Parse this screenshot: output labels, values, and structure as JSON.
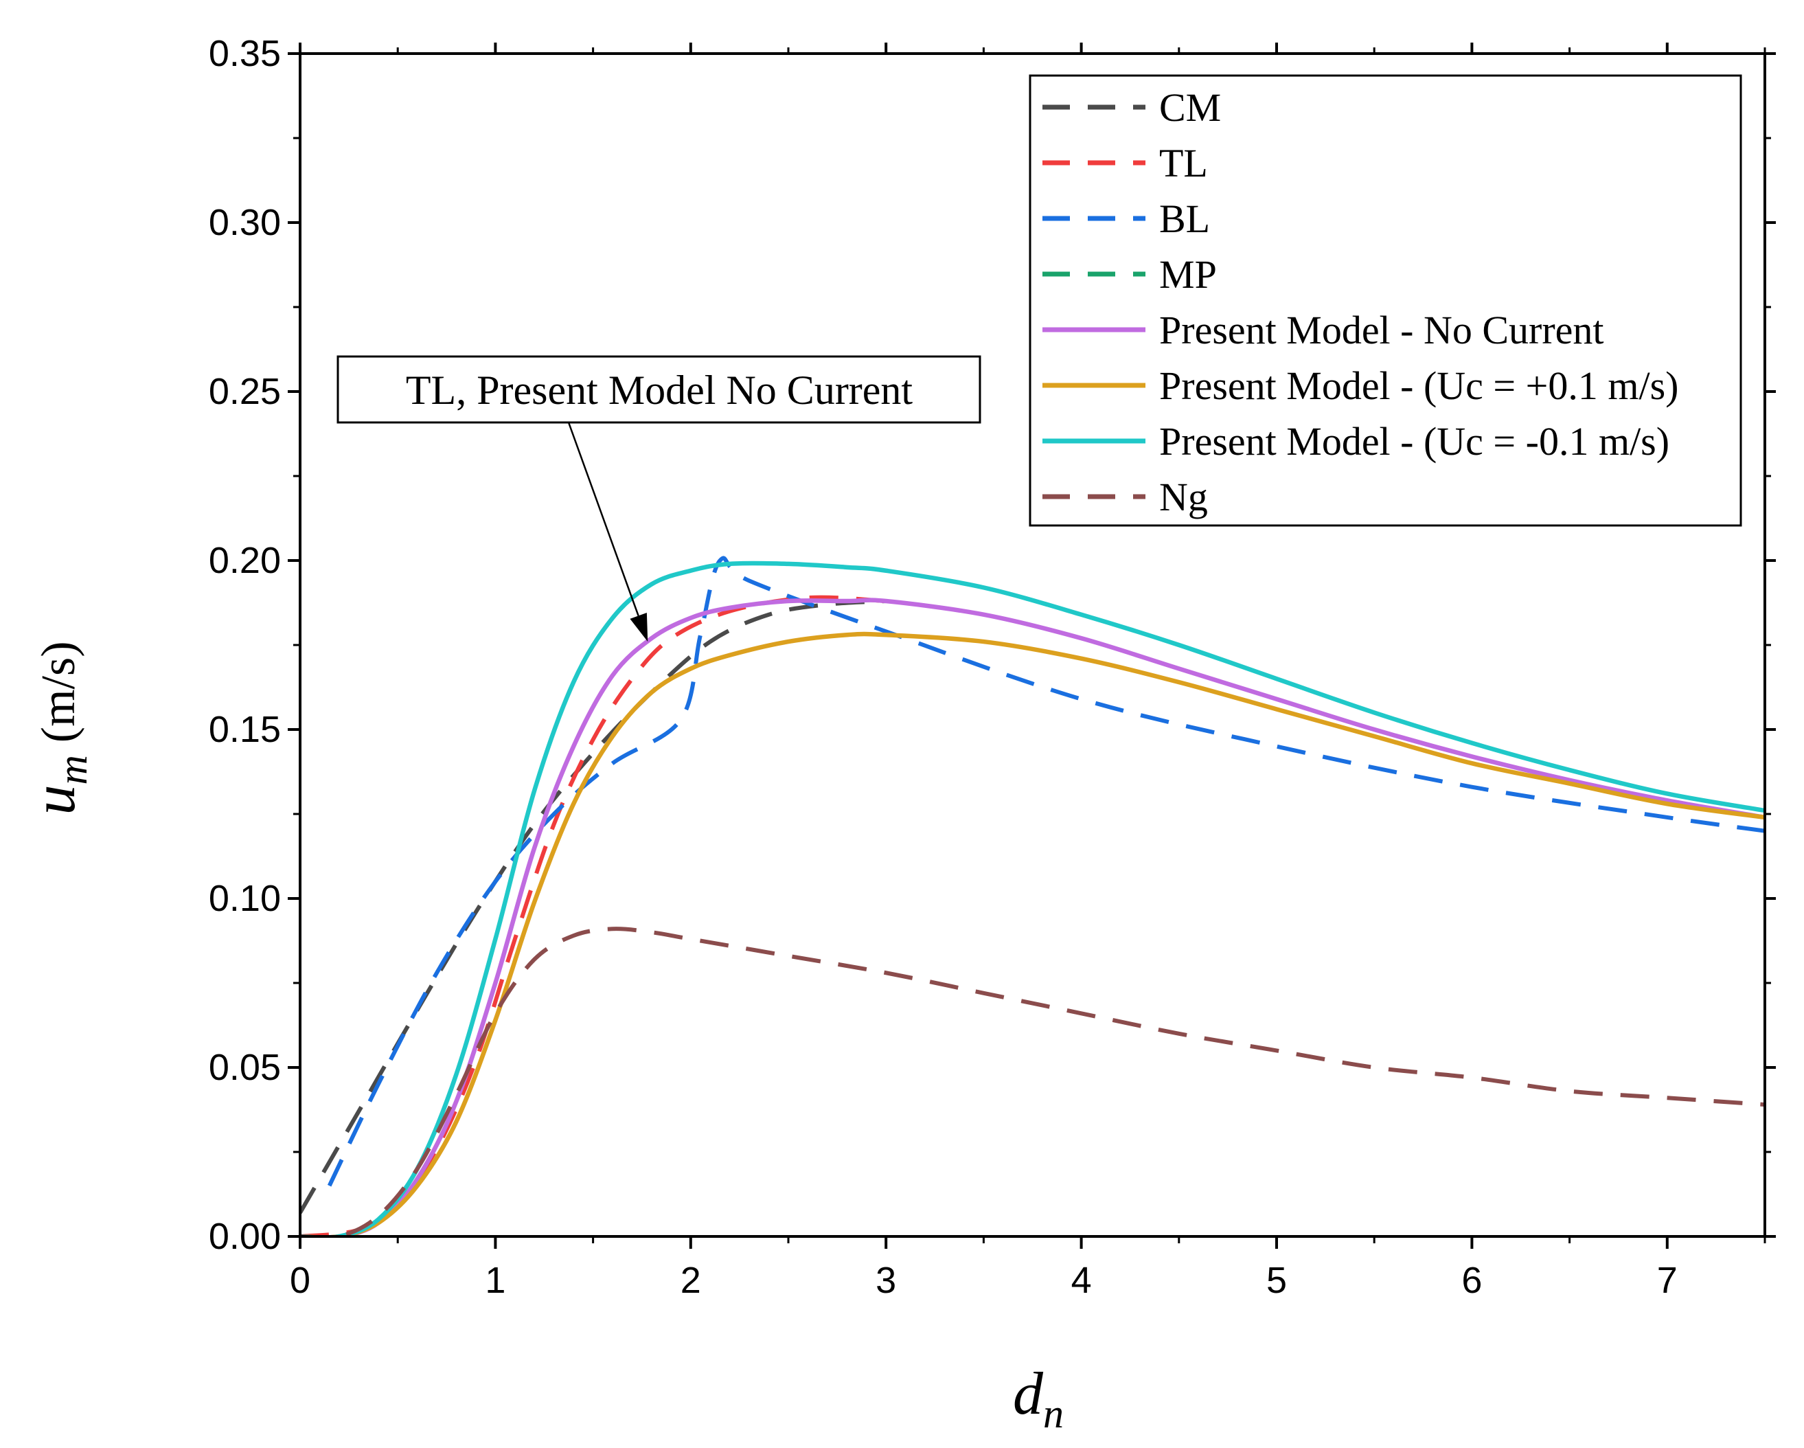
{
  "chart_data": {
    "type": "line",
    "title": "",
    "xlabel": "d",
    "xlabel_sub": "n",
    "ylabel": "u",
    "ylabel_sub": "m",
    "ylabel_unit": "(m/s)",
    "xlim": [
      0,
      7.5
    ],
    "ylim": [
      0,
      0.35
    ],
    "x_ticks": [
      "0",
      "1",
      "2",
      "3",
      "4",
      "5",
      "6",
      "7"
    ],
    "y_ticks": [
      "0.00",
      "0.05",
      "0.10",
      "0.15",
      "0.20",
      "0.25",
      "0.30",
      "0.35"
    ],
    "grid": false,
    "legend_position": "top-right",
    "series": [
      {
        "name": "CM",
        "color": "#4a4a4a",
        "dashed": true,
        "x": [
          0,
          0.3,
          0.6,
          0.9,
          1.2,
          1.5,
          1.8,
          2.1,
          2.4,
          2.7,
          3.0
        ],
        "y": [
          0.007,
          0.037,
          0.067,
          0.096,
          0.122,
          0.143,
          0.161,
          0.176,
          0.184,
          0.187,
          0.188
        ]
      },
      {
        "name": "TL",
        "color": "#f03c3c",
        "dashed": true,
        "x": [
          0,
          0.3,
          0.5,
          0.7,
          0.9,
          1.1,
          1.3,
          1.5,
          1.7,
          1.9,
          2.2,
          2.6,
          3.0
        ],
        "y": [
          0,
          0.002,
          0.01,
          0.026,
          0.052,
          0.088,
          0.122,
          0.147,
          0.165,
          0.177,
          0.185,
          0.189,
          0.188
        ]
      },
      {
        "name": "BL",
        "color": "#1a6fe0",
        "dashed": true,
        "x": [
          0.15,
          0.4,
          0.7,
          1.0,
          1.3,
          1.6,
          1.95,
          2.05,
          2.15,
          2.3,
          3.0,
          4.0,
          5.0,
          6.0,
          7.0,
          7.5
        ],
        "y": [
          0.015,
          0.045,
          0.078,
          0.105,
          0.125,
          0.14,
          0.153,
          0.178,
          0.2,
          0.194,
          0.179,
          0.159,
          0.145,
          0.133,
          0.124,
          0.12
        ]
      },
      {
        "name": "MP",
        "color": "#1aa36b",
        "dashed": true,
        "x": [],
        "y": []
      },
      {
        "name": "Present Model - No Current",
        "color": "#c06be0",
        "dashed": false,
        "x": [
          0,
          0.2,
          0.4,
          0.6,
          0.8,
          1.0,
          1.2,
          1.4,
          1.6,
          1.8,
          2.0,
          2.2,
          2.5,
          2.8,
          3.0,
          3.5,
          4.0,
          4.5,
          5.0,
          5.5,
          6.0,
          6.5,
          7.0,
          7.5
        ],
        "y": [
          0,
          0.0,
          0.004,
          0.017,
          0.04,
          0.075,
          0.115,
          0.145,
          0.166,
          0.177,
          0.183,
          0.186,
          0.188,
          0.188,
          0.188,
          0.184,
          0.177,
          0.168,
          0.159,
          0.15,
          0.142,
          0.135,
          0.129,
          0.124
        ]
      },
      {
        "name": "Present Model - (Uc = +0.1 m/s)",
        "color": "#dca01e",
        "dashed": false,
        "x": [
          0,
          0.2,
          0.4,
          0.6,
          0.8,
          1.0,
          1.2,
          1.4,
          1.6,
          1.8,
          2.0,
          2.2,
          2.5,
          2.8,
          3.0,
          3.5,
          4.0,
          4.5,
          5.0,
          5.5,
          6.0,
          6.5,
          7.0,
          7.5
        ],
        "y": [
          0,
          0.0,
          0.004,
          0.015,
          0.034,
          0.064,
          0.099,
          0.128,
          0.148,
          0.161,
          0.168,
          0.172,
          0.176,
          0.178,
          0.178,
          0.176,
          0.171,
          0.164,
          0.156,
          0.148,
          0.14,
          0.134,
          0.128,
          0.124
        ]
      },
      {
        "name": "Present Model - (Uc = -0.1 m/s)",
        "color": "#20c8c8",
        "dashed": false,
        "x": [
          0,
          0.2,
          0.4,
          0.6,
          0.8,
          1.0,
          1.2,
          1.4,
          1.6,
          1.8,
          2.0,
          2.2,
          2.5,
          2.8,
          3.0,
          3.5,
          4.0,
          4.5,
          5.0,
          5.5,
          6.0,
          6.5,
          7.0,
          7.5
        ],
        "y": [
          0,
          0.0,
          0.005,
          0.02,
          0.048,
          0.088,
          0.132,
          0.164,
          0.183,
          0.193,
          0.197,
          0.199,
          0.199,
          0.198,
          0.197,
          0.192,
          0.184,
          0.175,
          0.165,
          0.155,
          0.146,
          0.138,
          0.131,
          0.126
        ]
      },
      {
        "name": "Ng",
        "color": "#8b4c4c",
        "dashed": true,
        "x": [
          0,
          0.2,
          0.4,
          0.6,
          0.8,
          1.0,
          1.2,
          1.4,
          1.6,
          1.8,
          2.0,
          2.5,
          3.0,
          3.5,
          4.0,
          4.5,
          5.0,
          5.5,
          6.0,
          6.5,
          7.0,
          7.5
        ],
        "y": [
          0,
          0.0,
          0.006,
          0.02,
          0.042,
          0.066,
          0.082,
          0.089,
          0.091,
          0.09,
          0.088,
          0.083,
          0.078,
          0.072,
          0.066,
          0.06,
          0.055,
          0.05,
          0.047,
          0.043,
          0.041,
          0.039
        ]
      }
    ],
    "annotation": {
      "text": "TL, Present Model No Current",
      "points_to": {
        "x": 1.78,
        "y": 0.176
      }
    }
  }
}
